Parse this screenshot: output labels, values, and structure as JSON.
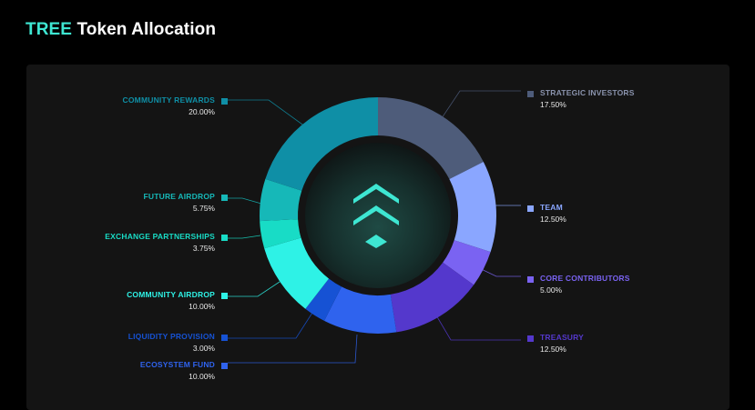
{
  "header": {
    "accent": "TREE",
    "title": "Token Allocation"
  },
  "chart_data": {
    "type": "donut",
    "title": "TREE Token Allocation",
    "series": [
      {
        "name": "STRATEGIC INVESTORS",
        "label": "17.50%",
        "value": 17.5,
        "color": "#4e5c7a"
      },
      {
        "name": "TEAM",
        "label": "12.50%",
        "value": 12.5,
        "color": "#8aa6ff"
      },
      {
        "name": "CORE CONTRIBUTORS",
        "label": "5.00%",
        "value": 5.0,
        "color": "#7a63f2"
      },
      {
        "name": "TREASURY",
        "label": "12.50%",
        "value": 12.5,
        "color": "#5438cc"
      },
      {
        "name": "ECOSYSTEM FUND",
        "label": "10.00%",
        "value": 10.0,
        "color": "#2f63ee"
      },
      {
        "name": "LIQUIDITY PROVISION",
        "label": "3.00%",
        "value": 3.0,
        "color": "#1652d4"
      },
      {
        "name": "COMMUNITY AIRDROP",
        "label": "10.00%",
        "value": 10.0,
        "color": "#2ef2e6"
      },
      {
        "name": "EXCHANGE PARTNERSHIPS",
        "label": "3.75%",
        "value": 3.75,
        "color": "#18dcc6"
      },
      {
        "name": "FUTURE AIRDROP",
        "label": "5.75%",
        "value": 5.75,
        "color": "#16b8b8"
      },
      {
        "name": "COMMUNITY REWARDS",
        "label": "20.00%",
        "value": 20.0,
        "color": "#0f8fa6"
      }
    ]
  }
}
